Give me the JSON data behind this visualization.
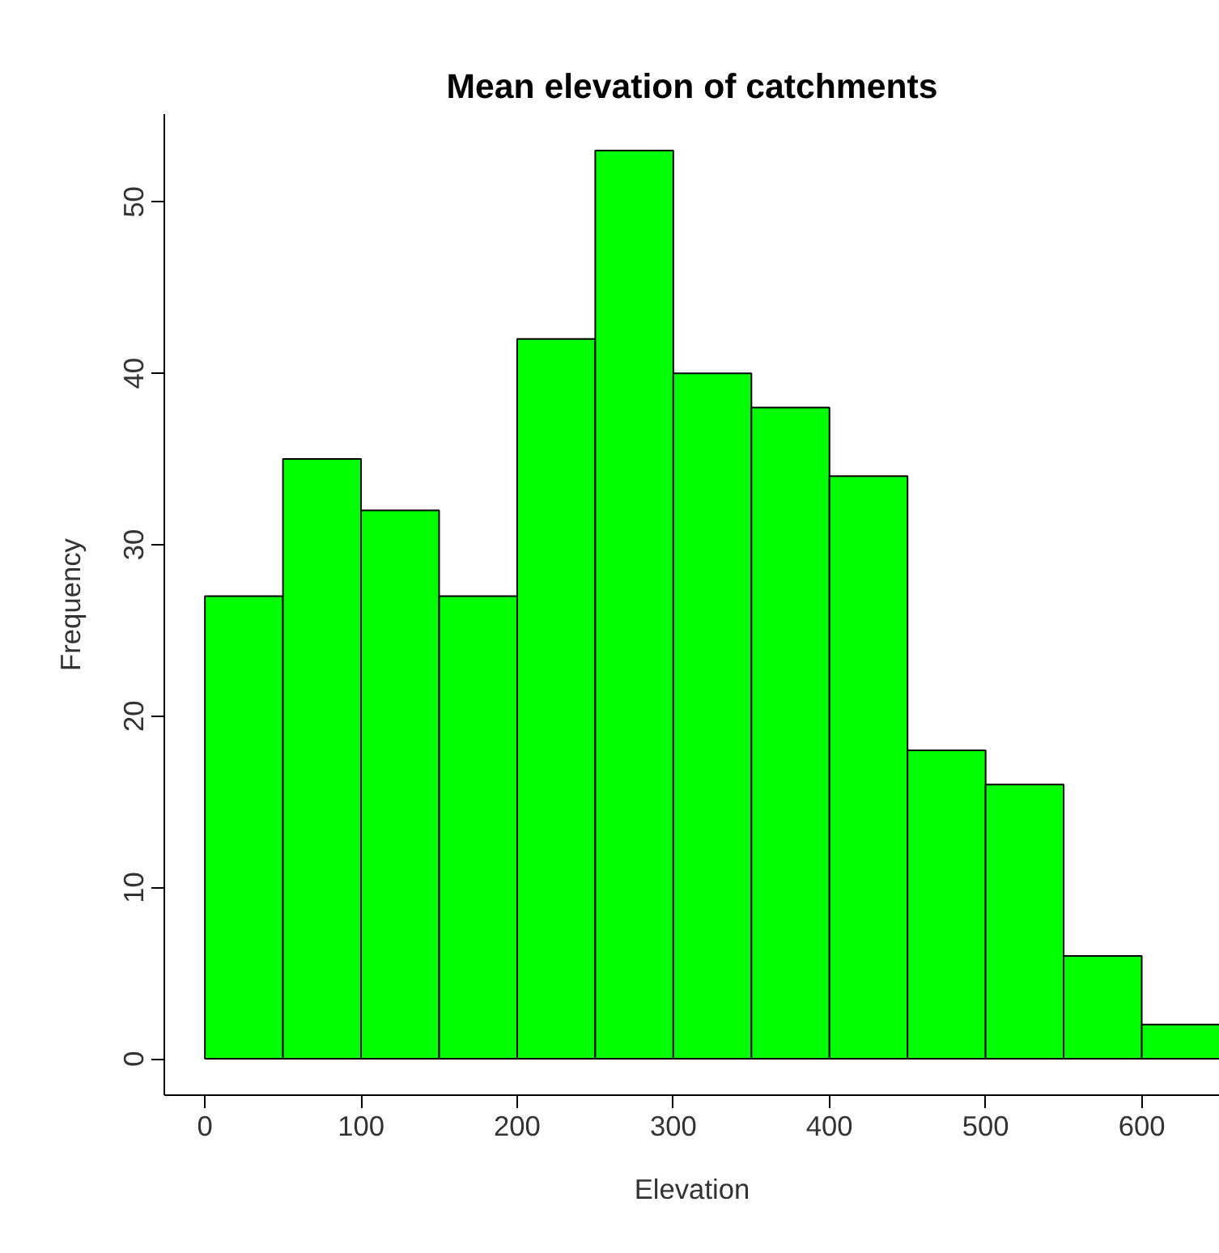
{
  "chart_data": {
    "type": "histogram",
    "title": "Mean elevation of catchments",
    "xlabel": "Elevation",
    "ylabel": "Frequency",
    "bins": [
      0,
      50,
      100,
      150,
      200,
      250,
      300,
      350,
      400,
      450,
      500,
      550,
      600,
      650
    ],
    "values": [
      27,
      35,
      32,
      27,
      42,
      53,
      40,
      38,
      34,
      18,
      16,
      6,
      2
    ],
    "color": "#00ff00",
    "xlim": [
      -26,
      650
    ],
    "ylim": [
      -2.12,
      55.12
    ],
    "xticks": [
      0,
      100,
      200,
      300,
      400,
      500,
      600
    ],
    "yticks": [
      0,
      10,
      20,
      30,
      40,
      50
    ],
    "grid": false
  }
}
